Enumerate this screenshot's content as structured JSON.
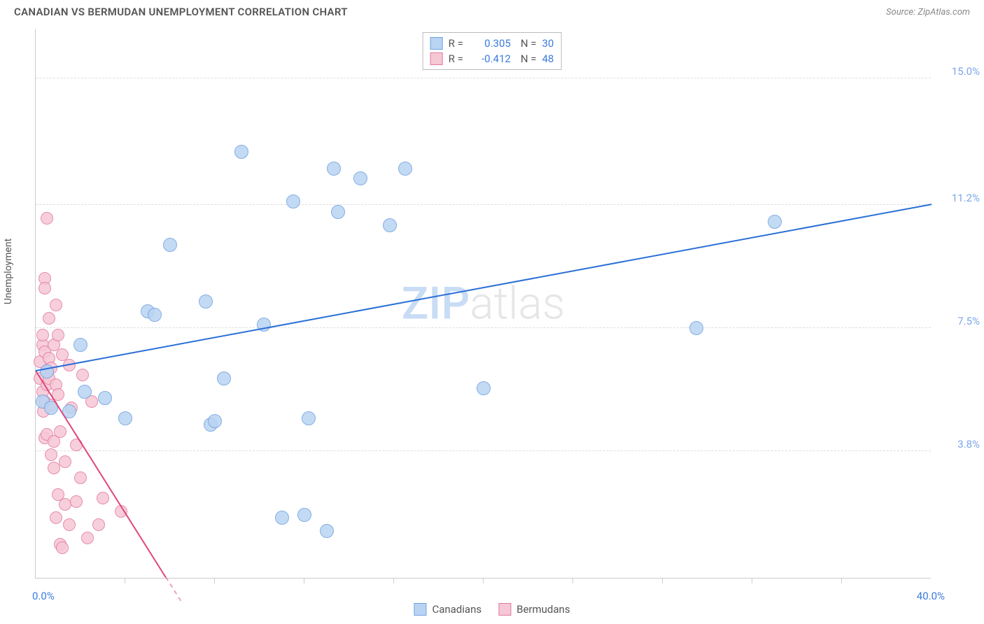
{
  "header": {
    "title": "CANADIAN VS BERMUDAN UNEMPLOYMENT CORRELATION CHART",
    "source": "Source: ZipAtlas.com"
  },
  "chart": {
    "type": "scatter",
    "y_axis_label": "Unemployment",
    "xlim": [
      0,
      40
    ],
    "ylim": [
      0,
      16.5
    ],
    "x_min_label": "0.0%",
    "x_max_label": "40.0%",
    "x_min_color": "#3b7bdd",
    "x_max_color": "#3b7bdd",
    "x_ticks": [
      4,
      8,
      12,
      16,
      20,
      24,
      28,
      32,
      36
    ],
    "y_gridlines": [
      {
        "y": 3.8,
        "label": "3.8%",
        "color": "#dddddd",
        "label_color": "#7aa7e8"
      },
      {
        "y": 7.5,
        "label": "7.5%",
        "color": "#dddddd",
        "label_color": "#7aa7e8"
      },
      {
        "y": 11.2,
        "label": "11.2%",
        "color": "#dddddd",
        "label_color": "#7aa7e8"
      },
      {
        "y": 15.0,
        "label": "15.0%",
        "color": "#dddddd",
        "label_color": "#7aa7e8"
      }
    ],
    "background_color": "#ffffff",
    "series": [
      {
        "name": "Canadians",
        "marker_color": "#b9d4f3",
        "marker_stroke": "#6fa1df",
        "marker_radius": 10,
        "trendline_color": "#2a6fd6",
        "trend_start": {
          "x": 0,
          "y": 6.2
        },
        "trend_end": {
          "x": 40,
          "y": 11.2
        },
        "R": "0.305",
        "N": "30",
        "points": [
          [
            0.3,
            5.3
          ],
          [
            0.5,
            6.2
          ],
          [
            0.7,
            5.1
          ],
          [
            1.5,
            5.0
          ],
          [
            2.0,
            7.0
          ],
          [
            2.2,
            5.6
          ],
          [
            3.1,
            5.4
          ],
          [
            4.0,
            4.8
          ],
          [
            5.0,
            8.0
          ],
          [
            5.3,
            7.9
          ],
          [
            6.0,
            10.0
          ],
          [
            7.6,
            8.3
          ],
          [
            7.8,
            4.6
          ],
          [
            8.0,
            4.7
          ],
          [
            8.4,
            6.0
          ],
          [
            9.2,
            12.8
          ],
          [
            10.2,
            7.6
          ],
          [
            11.0,
            1.8
          ],
          [
            11.5,
            11.3
          ],
          [
            12.0,
            1.9
          ],
          [
            12.2,
            4.8
          ],
          [
            13.0,
            1.4
          ],
          [
            13.3,
            12.3
          ],
          [
            13.5,
            11.0
          ],
          [
            14.5,
            12.0
          ],
          [
            15.8,
            10.6
          ],
          [
            16.5,
            12.3
          ],
          [
            20.0,
            5.7
          ],
          [
            29.5,
            7.5
          ],
          [
            33.0,
            10.7
          ]
        ]
      },
      {
        "name": "Bermudans",
        "marker_color": "#f6c7d5",
        "marker_stroke": "#e279a1",
        "marker_radius": 9,
        "trendline_color": "#e0457c",
        "trend_start": {
          "x": 0,
          "y": 6.2
        },
        "trend_end": {
          "x": 5.8,
          "y": 0.0
        },
        "R": "-0.412",
        "N": "48",
        "points": [
          [
            0.2,
            6.0
          ],
          [
            0.2,
            6.5
          ],
          [
            0.3,
            5.6
          ],
          [
            0.3,
            7.0
          ],
          [
            0.3,
            7.3
          ],
          [
            0.35,
            5.0
          ],
          [
            0.4,
            6.8
          ],
          [
            0.4,
            9.0
          ],
          [
            0.4,
            8.7
          ],
          [
            0.4,
            4.2
          ],
          [
            0.4,
            5.3
          ],
          [
            0.5,
            10.8
          ],
          [
            0.5,
            5.8
          ],
          [
            0.5,
            6.2
          ],
          [
            0.5,
            4.3
          ],
          [
            0.6,
            7.8
          ],
          [
            0.6,
            6.6
          ],
          [
            0.6,
            6.0
          ],
          [
            0.7,
            5.2
          ],
          [
            0.7,
            3.7
          ],
          [
            0.7,
            6.3
          ],
          [
            0.8,
            7.0
          ],
          [
            0.8,
            4.1
          ],
          [
            0.8,
            3.3
          ],
          [
            0.9,
            5.8
          ],
          [
            0.9,
            8.2
          ],
          [
            0.9,
            1.8
          ],
          [
            1.0,
            7.3
          ],
          [
            1.0,
            2.5
          ],
          [
            1.0,
            5.5
          ],
          [
            1.1,
            4.4
          ],
          [
            1.1,
            1.0
          ],
          [
            1.2,
            0.9
          ],
          [
            1.2,
            6.7
          ],
          [
            1.3,
            2.2
          ],
          [
            1.3,
            3.5
          ],
          [
            1.5,
            6.4
          ],
          [
            1.5,
            1.6
          ],
          [
            1.6,
            5.1
          ],
          [
            1.8,
            2.3
          ],
          [
            1.8,
            4.0
          ],
          [
            2.0,
            3.0
          ],
          [
            2.1,
            6.1
          ],
          [
            2.3,
            1.2
          ],
          [
            2.5,
            5.3
          ],
          [
            2.8,
            1.6
          ],
          [
            3.0,
            2.4
          ],
          [
            3.8,
            2.0
          ]
        ]
      }
    ],
    "legend_top": {
      "r_label": "R =",
      "n_label": "N =",
      "value_color": "#3b7bdd",
      "swatch_border_blue": "#6fa1df",
      "swatch_fill_blue": "#b9d4f3",
      "swatch_border_pink": "#e279a1",
      "swatch_fill_pink": "#f6c7d5"
    },
    "legend_bottom": {
      "swatch_border_blue": "#6fa1df",
      "swatch_fill_blue": "#b9d4f3",
      "swatch_border_pink": "#e279a1",
      "swatch_fill_pink": "#f6c7d5"
    },
    "watermark": {
      "text_a": "ZIP",
      "text_b": "atlas",
      "color_a": "#c8dcf5",
      "color_b": "#e6e6e6"
    }
  }
}
